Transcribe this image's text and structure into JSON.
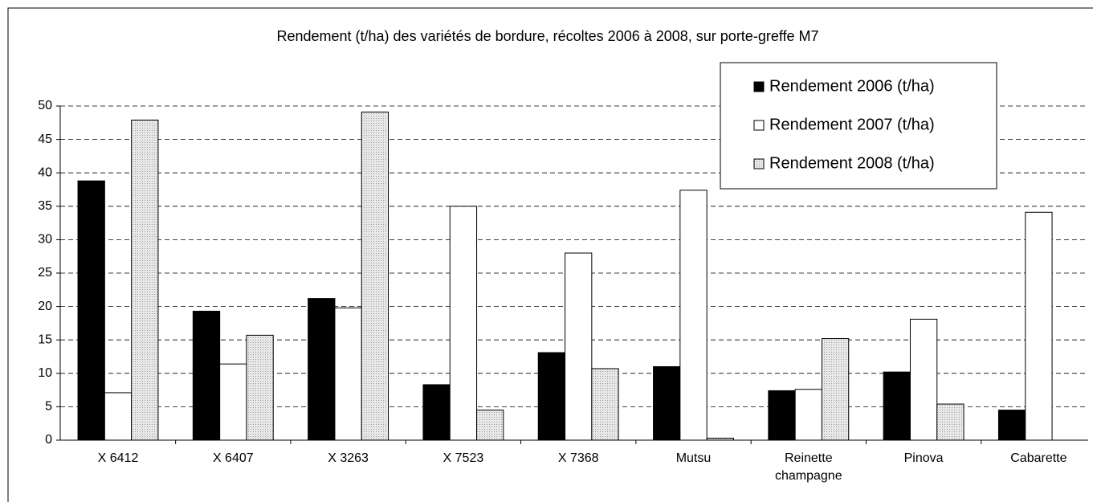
{
  "chart_data": {
    "type": "bar",
    "title": "Rendement (t/ha) des variétés de bordure, récoltes 2006 à 2008, sur porte-greffe M7",
    "categories": [
      "X 6412",
      "X 6407",
      "X 3263",
      "X 7523",
      "X 7368",
      "Mutsu",
      "Reinette champagne",
      "Pinova",
      "Cabarette"
    ],
    "series": [
      {
        "name": "Rendement 2006 (t/ha)",
        "color": "#000000",
        "values": [
          38.8,
          19.3,
          21.2,
          8.3,
          13.1,
          11.0,
          7.4,
          10.2,
          4.5
        ]
      },
      {
        "name": "Rendement 2007 (t/ha)",
        "color": "#ffffff",
        "values": [
          7.1,
          11.4,
          19.8,
          35.0,
          28.0,
          37.4,
          7.6,
          18.1,
          34.1
        ]
      },
      {
        "name": "Rendement 2008 (t/ha)",
        "color": "#d9d9d9",
        "values": [
          47.9,
          15.7,
          49.1,
          4.5,
          10.7,
          0.3,
          15.2,
          5.4,
          null
        ]
      }
    ],
    "ylim": [
      0,
      50
    ],
    "yticks": [
      0,
      5,
      10,
      15,
      20,
      25,
      30,
      35,
      40,
      45,
      50
    ],
    "grid": true,
    "legend": "top-right"
  }
}
